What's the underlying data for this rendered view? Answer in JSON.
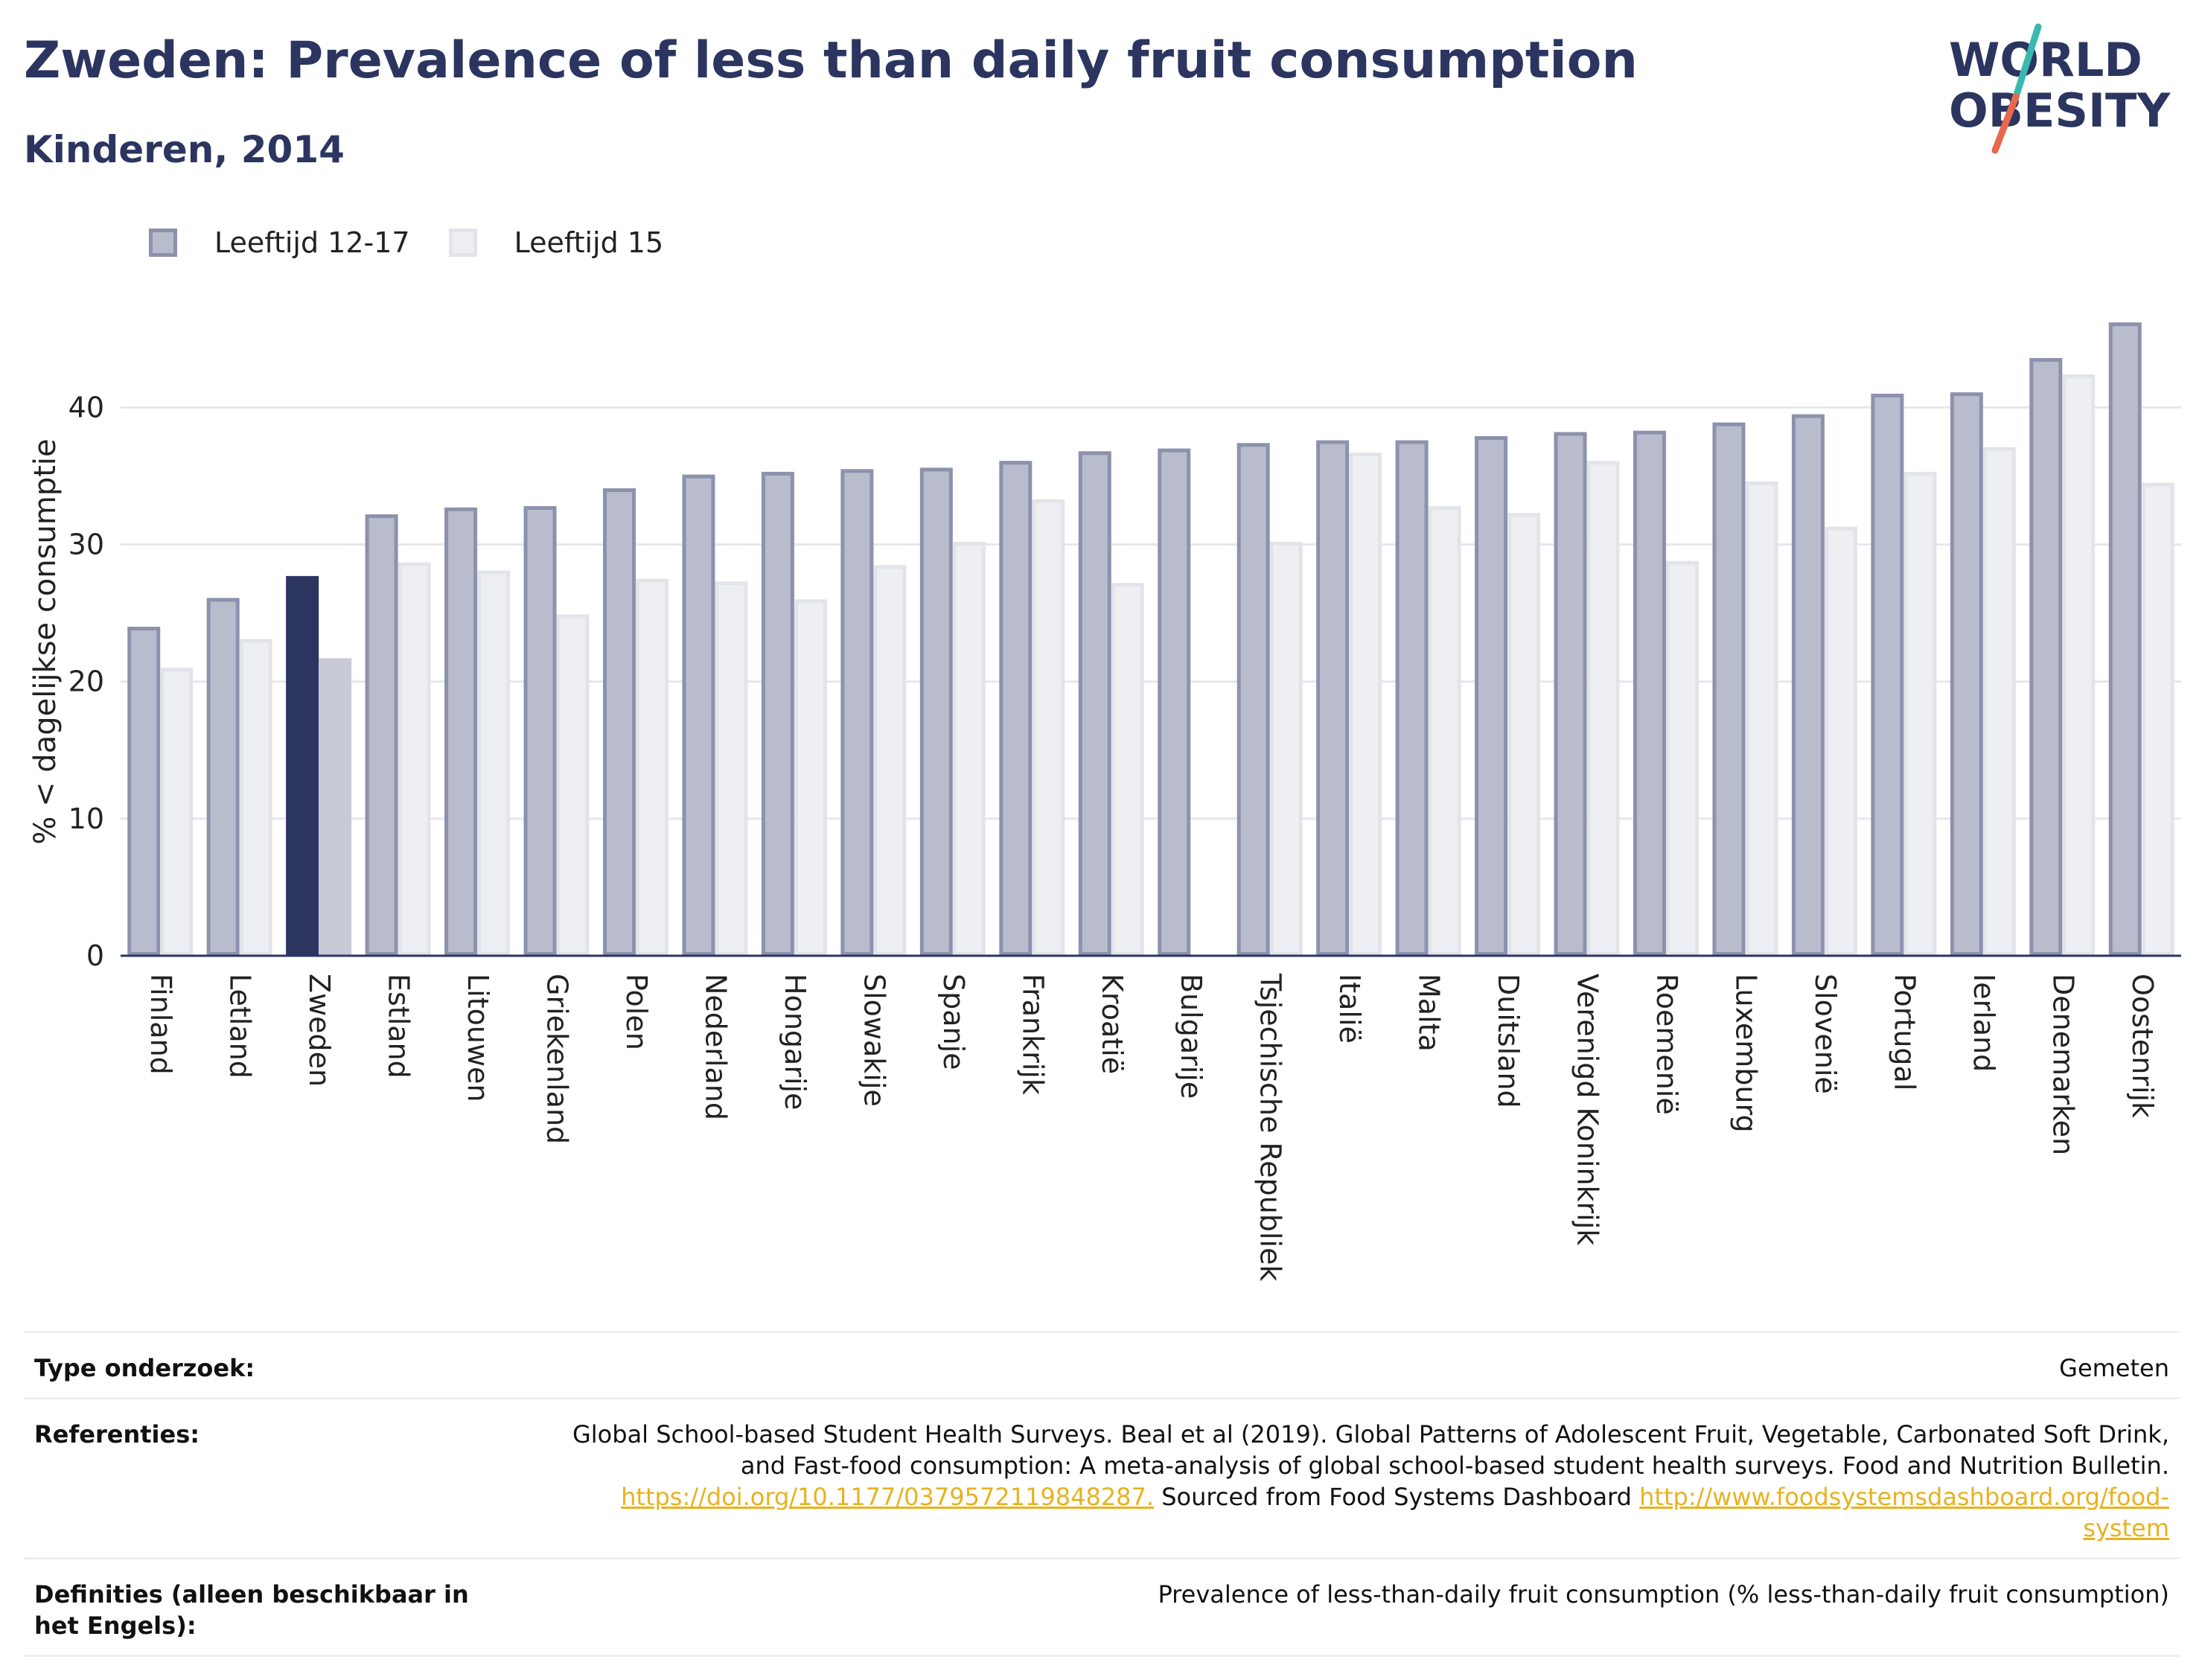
{
  "header": {
    "title": "Zweden: Prevalence of less than daily fruit consumption",
    "subtitle": "Kinderen, 2014"
  },
  "logo": {
    "line1": "WORLD",
    "line2": "OBESITY",
    "colors": {
      "text": "#2b3560",
      "slash_top": "#3bb9b0",
      "slash_bottom": "#e8674f"
    }
  },
  "colors": {
    "series1_fill": "#b9bccc",
    "series1_stroke": "#8c92ad",
    "series2_fill": "#eeeff3",
    "series2_stroke": "#e3e4ea",
    "highlight1": "#2b3560",
    "highlight2": "#c8cad6",
    "grid": "#e6e8ee",
    "axis": "#2b3560"
  },
  "chart_data": {
    "type": "bar",
    "ylabel": "% < dagelijkse consumptie",
    "ylim": [
      0,
      48
    ],
    "yticks": [
      0,
      10,
      20,
      30,
      40
    ],
    "highlight": "Zweden",
    "categories": [
      "Finland",
      "Letland",
      "Zweden",
      "Estland",
      "Litouwen",
      "Griekenland",
      "Polen",
      "Nederland",
      "Hongarije",
      "Slowakije",
      "Spanje",
      "Frankrijk",
      "Kroatië",
      "Bulgarije",
      "Tsjechische Republiek",
      "Italië",
      "Malta",
      "Duitsland",
      "Verenigd Koninkrijk",
      "Roemenië",
      "Luxemburg",
      "Slovenië",
      "Portugal",
      "Ierland",
      "Denemarken",
      "Oostenrijk"
    ],
    "series": [
      {
        "name": "Leeftijd 12-17",
        "values": [
          24.0,
          26.1,
          27.7,
          32.2,
          32.7,
          32.8,
          34.1,
          35.1,
          35.3,
          35.5,
          35.6,
          36.1,
          36.8,
          37.0,
          37.4,
          37.6,
          37.6,
          37.9,
          38.2,
          38.3,
          38.9,
          39.5,
          41.0,
          41.1,
          43.6,
          46.2
        ]
      },
      {
        "name": "Leeftijd 15",
        "values": [
          21.0,
          23.1,
          21.7,
          28.7,
          28.1,
          24.9,
          27.5,
          27.3,
          26.0,
          28.5,
          30.2,
          33.3,
          27.2,
          null,
          30.2,
          36.7,
          32.8,
          32.3,
          36.1,
          28.8,
          34.6,
          31.3,
          35.3,
          37.1,
          42.4,
          34.5
        ]
      }
    ]
  },
  "info": {
    "rows": [
      {
        "label": "Type onderzoek:",
        "value": "Gemeten"
      },
      {
        "label": "Referenties:",
        "value": "Global School-based Student Health Surveys. Beal et al (2019). Global Patterns of Adolescent Fruit, Vegetable, Carbonated Soft Drink, and Fast-food consumption: A meta-analysis of global school-based student health surveys. Food and Nutrition Bulletin.",
        "link1": "https://doi.org/10.1177/0379572119848287.",
        "middle": " Sourced from Food Systems Dashboard ",
        "link2": "http://www.foodsystemsdashboard.org/food-system"
      },
      {
        "label": "Definities (alleen beschikbaar in het Engels):",
        "value": "Prevalence of less-than-daily fruit consumption (% less-than-daily fruit consumption)"
      }
    ]
  }
}
